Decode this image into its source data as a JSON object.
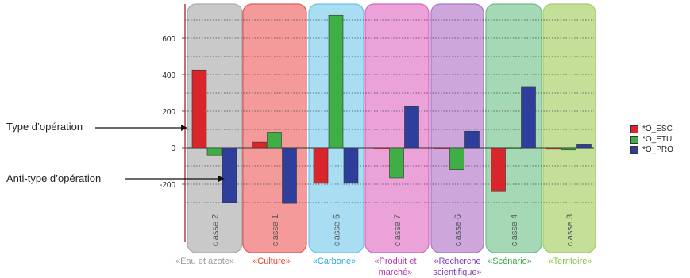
{
  "chart_data": {
    "type": "bar",
    "categories": [
      "classe 2",
      "classe 1",
      "classe 5",
      "classe 7",
      "classe 6",
      "classe 4",
      "classe 3"
    ],
    "category_labels": [
      "«Eau et azote»",
      "«Culture»",
      "«Carbone»",
      "«Produit et marché»",
      "«Recherche scientifique»",
      "«Scénario»",
      "«Territoire»"
    ],
    "category_label_colors": [
      "#9a9a9a",
      "#e8422e",
      "#2aa9e0",
      "#b535a8",
      "#7c3fb0",
      "#3aa64a",
      "#8cc24a"
    ],
    "band_colors": [
      "#c9c9c9",
      "#f49a9a",
      "#a9ddf2",
      "#eaa2d8",
      "#cda6dc",
      "#a5d8b4",
      "#c4df98"
    ],
    "band_border_colors": [
      "#aaaaaa",
      "#e05a5a",
      "#6bc3e8",
      "#d266c0",
      "#a878c8",
      "#6cbf84",
      "#a0cc6c"
    ],
    "series": [
      {
        "name": "*O_ESC",
        "color": "#d9262c",
        "values": [
          425,
          30,
          -195,
          -5,
          0,
          -240,
          -8
        ]
      },
      {
        "name": "*O_ETU",
        "color": "#3fae45",
        "values": [
          -40,
          85,
          725,
          -165,
          -120,
          -5,
          -12
        ]
      },
      {
        "name": "*O_PRO",
        "color": "#2e3f9b",
        "values": [
          -300,
          -305,
          -195,
          225,
          90,
          335,
          20
        ]
      }
    ],
    "ylim": [
      -300,
      750
    ],
    "yticks": [
      -200,
      0,
      200,
      400,
      600
    ],
    "ytick_labels": [
      "-200",
      "0",
      "200",
      "400",
      "600"
    ],
    "grid": true,
    "legend_position": "right"
  },
  "annotations": {
    "type_label": "Type d’opération",
    "anti_type_label": "Anti-type d’opération"
  },
  "legend": {
    "items": [
      {
        "label": "*O_ESC",
        "color": "#d9262c"
      },
      {
        "label": "*O_ETU",
        "color": "#3fae45"
      },
      {
        "label": "*O_PRO",
        "color": "#2e3f9b"
      }
    ]
  }
}
